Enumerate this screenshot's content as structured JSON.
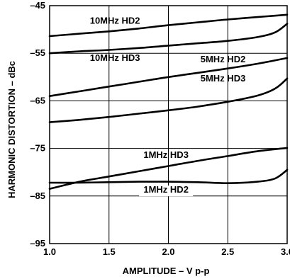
{
  "chart_data": {
    "type": "line",
    "title": "",
    "xlabel": "AMPLITUDE – V p-p",
    "ylabel": "HARMONIC DISTORTION – dBc",
    "xlim": [
      1.0,
      3.0
    ],
    "ylim": [
      -95,
      -45
    ],
    "grid": true,
    "x_ticks": [
      1.0,
      1.5,
      2.0,
      2.5,
      3.0
    ],
    "x_tick_labels": [
      "1.0",
      "1.5",
      "2.0",
      "2.5",
      "3.0"
    ],
    "y_ticks": [
      -45,
      -55,
      -65,
      -75,
      -85,
      -95
    ],
    "y_tick_labels": [
      "–45",
      "–55",
      "–65",
      "–75",
      "–85",
      "–95"
    ],
    "series": [
      {
        "name": "10MHz HD2",
        "x": [
          1.0,
          1.25,
          1.5,
          1.75,
          2.0,
          2.25,
          2.5,
          2.75,
          3.0
        ],
        "y": [
          -51.4,
          -50.9,
          -50.4,
          -49.8,
          -49.1,
          -48.5,
          -47.9,
          -47.4,
          -46.9
        ]
      },
      {
        "name": "10MHz HD3",
        "x": [
          1.0,
          1.25,
          1.5,
          1.75,
          2.0,
          2.25,
          2.5,
          2.75,
          2.9,
          3.0
        ],
        "y": [
          -55.0,
          -54.6,
          -54.3,
          -53.9,
          -53.4,
          -52.9,
          -52.4,
          -51.6,
          -50.6,
          -48.8
        ]
      },
      {
        "name": "5MHz HD2",
        "x": [
          1.0,
          1.25,
          1.5,
          1.75,
          2.0,
          2.25,
          2.5,
          2.75,
          3.0
        ],
        "y": [
          -64.0,
          -63.0,
          -62.0,
          -61.0,
          -60.0,
          -59.1,
          -58.2,
          -57.2,
          -56.0
        ]
      },
      {
        "name": "5MHz HD3",
        "x": [
          1.0,
          1.25,
          1.5,
          1.75,
          2.0,
          2.25,
          2.5,
          2.75,
          2.9,
          3.0
        ],
        "y": [
          -69.5,
          -69.0,
          -68.4,
          -67.7,
          -67.0,
          -66.2,
          -65.2,
          -63.9,
          -62.4,
          -60.3
        ]
      },
      {
        "name": "1MHz HD3",
        "x": [
          1.0,
          1.25,
          1.5,
          1.75,
          2.0,
          2.25,
          2.5,
          2.75,
          3.0
        ],
        "y": [
          -83.5,
          -82.0,
          -80.9,
          -79.8,
          -78.7,
          -77.6,
          -76.6,
          -75.6,
          -74.9
        ]
      },
      {
        "name": "1MHz HD2",
        "x": [
          1.0,
          1.25,
          1.5,
          1.75,
          2.0,
          2.25,
          2.5,
          2.75,
          2.9,
          3.0
        ],
        "y": [
          -82.2,
          -82.2,
          -82.1,
          -82.0,
          -82.0,
          -82.1,
          -82.3,
          -82.0,
          -81.3,
          -79.5
        ]
      }
    ],
    "labels": [
      "10MHz HD2",
      "10MHz HD3",
      "5MHz HD2",
      "5MHz HD3",
      "1MHz HD3",
      "1MHz HD2"
    ]
  }
}
